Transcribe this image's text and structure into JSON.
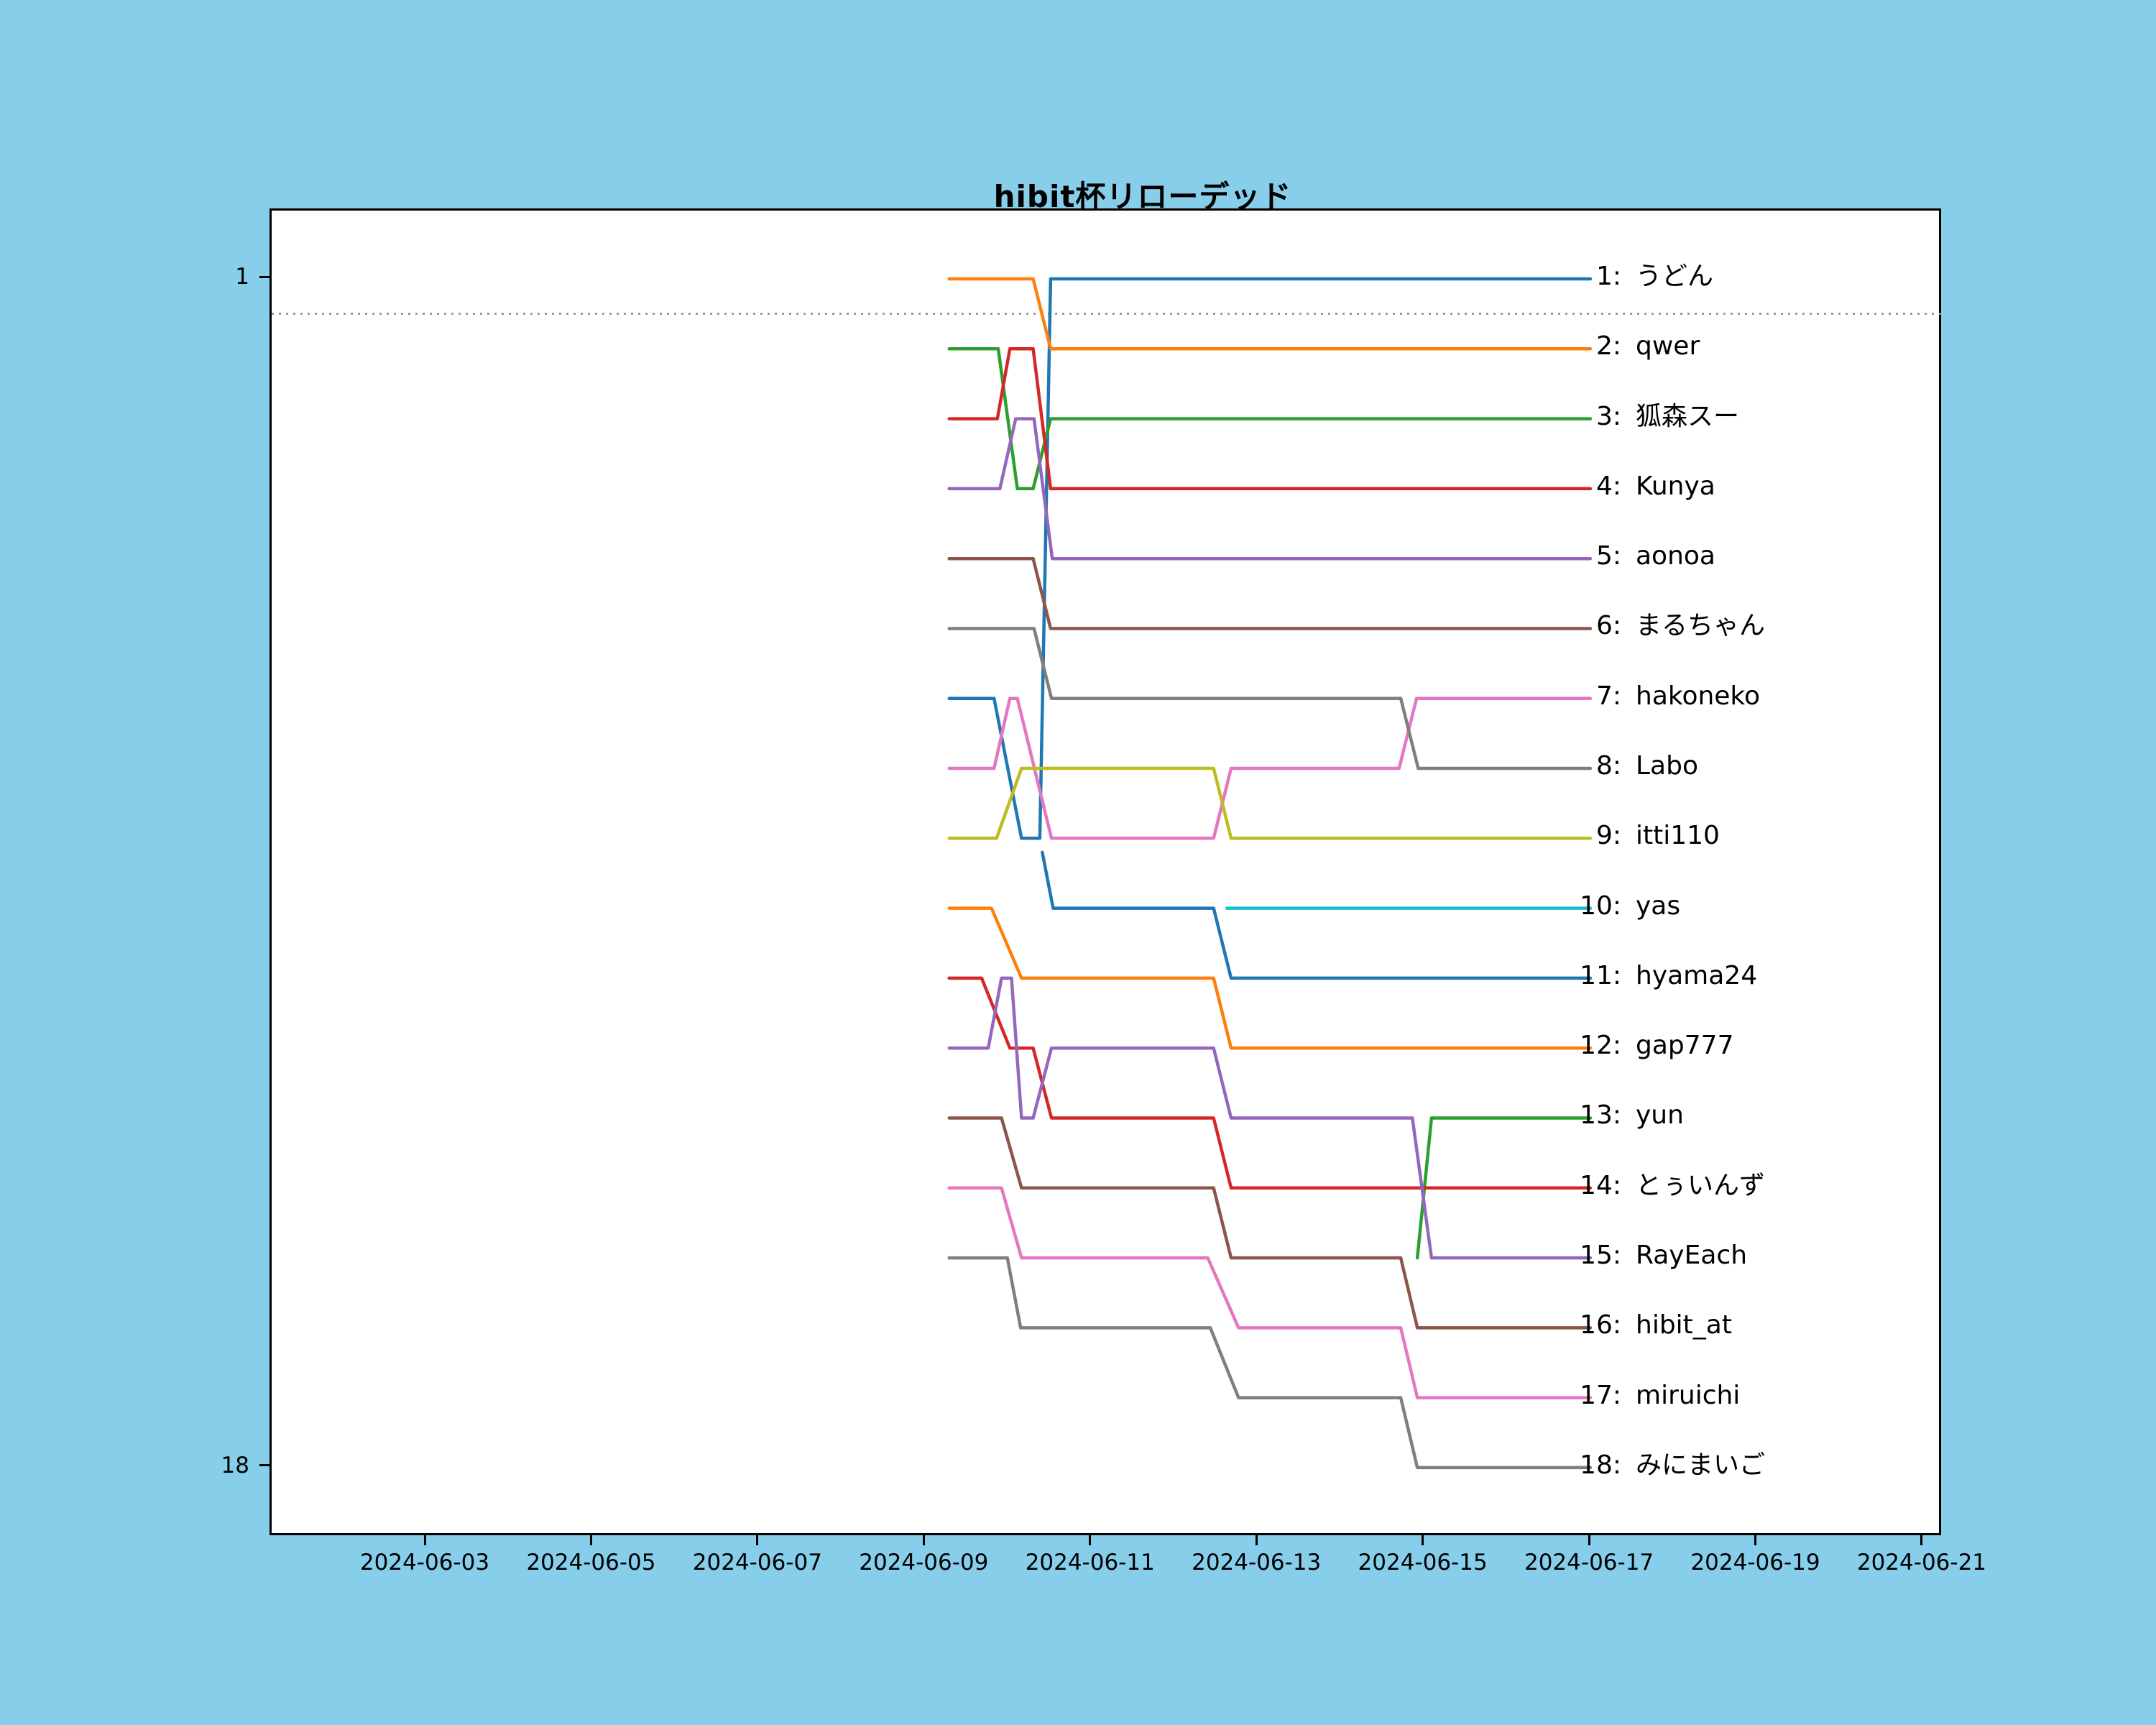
{
  "title": "hibit杯リローデッド",
  "colors": {
    "figure_background": "#87CEEB",
    "plot_background": "#ffffff",
    "axis": "#000000",
    "cutoff_line": "#8a8a8a"
  },
  "chart_data": {
    "type": "line",
    "subtype": "bump-ranking",
    "title": "hibit杯リローデッド",
    "legend_position": "right-of-lines",
    "grid": false,
    "x_axis": {
      "start_date": "2024-06-03",
      "tick_labels": [
        "2024-06-03",
        "2024-06-05",
        "2024-06-07",
        "2024-06-09",
        "2024-06-11",
        "2024-06-13",
        "2024-06-15",
        "2024-06-17",
        "2024-06-19",
        "2024-06-21"
      ],
      "tick_day_offsets": [
        0,
        2,
        4,
        6,
        8,
        10,
        12,
        14,
        16,
        18
      ]
    },
    "y_axis": {
      "tick_labels": [
        "1",
        "18"
      ],
      "tick_ranks": [
        1,
        18
      ],
      "range": [
        1,
        18
      ],
      "inverted": true
    },
    "cutoff_rank": 1.5,
    "series": [
      {
        "final_rank": 1,
        "label_num": "1:",
        "name": "うどん",
        "color": "#1f77b4",
        "points": [
          [
            6.28,
            7
          ],
          [
            6.82,
            7
          ],
          [
            7.15,
            9
          ],
          [
            7.37,
            9
          ],
          [
            7.5,
            1
          ],
          [
            13.99,
            1
          ]
        ]
      },
      {
        "final_rank": 2,
        "label_num": "2:",
        "name": "qwer",
        "color": "#ff7f0e",
        "points": [
          [
            6.28,
            1
          ],
          [
            7.29,
            1
          ],
          [
            7.5,
            2
          ],
          [
            13.99,
            2
          ]
        ]
      },
      {
        "final_rank": 3,
        "label_num": "3:",
        "name": "狐森スー",
        "color": "#2ca02c",
        "points": [
          [
            6.28,
            2
          ],
          [
            6.87,
            2
          ],
          [
            7.1,
            4
          ],
          [
            7.29,
            4
          ],
          [
            7.5,
            3
          ],
          [
            13.99,
            3
          ]
        ]
      },
      {
        "final_rank": 4,
        "label_num": "4:",
        "name": "Kunya",
        "color": "#d62728",
        "points": [
          [
            6.28,
            3
          ],
          [
            6.86,
            3
          ],
          [
            7.01,
            2
          ],
          [
            7.29,
            2
          ],
          [
            7.5,
            4
          ],
          [
            13.99,
            4
          ]
        ]
      },
      {
        "final_rank": 5,
        "label_num": "5:",
        "name": "aonoa",
        "color": "#9467bd",
        "points": [
          [
            6.28,
            4
          ],
          [
            6.89,
            4
          ],
          [
            7.08,
            3
          ],
          [
            7.3,
            3
          ],
          [
            7.52,
            5
          ],
          [
            13.99,
            5
          ]
        ]
      },
      {
        "final_rank": 6,
        "label_num": "6:",
        "name": "まるちゃん",
        "color": "#8c564b",
        "points": [
          [
            6.28,
            5
          ],
          [
            7.29,
            5
          ],
          [
            7.5,
            6
          ],
          [
            13.99,
            6
          ]
        ]
      },
      {
        "final_rank": 7,
        "label_num": "7:",
        "name": "hakoneko",
        "color": "#e377c2",
        "points": [
          [
            6.28,
            8
          ],
          [
            6.82,
            8
          ],
          [
            7.01,
            7
          ],
          [
            7.1,
            7
          ],
          [
            7.51,
            9
          ],
          [
            9.46,
            9
          ],
          [
            9.67,
            8
          ],
          [
            11.69,
            8
          ],
          [
            11.9,
            7
          ],
          [
            13.99,
            7
          ]
        ]
      },
      {
        "final_rank": 8,
        "label_num": "8:",
        "name": "Labo",
        "color": "#7f7f7f",
        "points": [
          [
            6.28,
            6
          ],
          [
            7.3,
            6
          ],
          [
            7.51,
            7
          ],
          [
            11.71,
            7
          ],
          [
            11.92,
            8
          ],
          [
            13.99,
            8
          ]
        ]
      },
      {
        "final_rank": 9,
        "label_num": "9:",
        "name": "itti110",
        "color": "#bcbd22",
        "points": [
          [
            6.28,
            9
          ],
          [
            6.85,
            9
          ],
          [
            7.15,
            8
          ],
          [
            9.46,
            8
          ],
          [
            9.67,
            9
          ],
          [
            13.99,
            9
          ]
        ]
      },
      {
        "final_rank": 10,
        "label_num": "10:",
        "name": "yas",
        "color": "#17becf",
        "points": [
          [
            9.62,
            10
          ],
          [
            13.99,
            10
          ]
        ]
      },
      {
        "final_rank": 11,
        "label_num": "11:",
        "name": "hyama24",
        "color": "#1f77b4",
        "points": [
          [
            7.4,
            9.2
          ],
          [
            7.53,
            10
          ],
          [
            9.46,
            10
          ],
          [
            9.67,
            11
          ],
          [
            13.99,
            11
          ]
        ]
      },
      {
        "final_rank": 12,
        "label_num": "12:",
        "name": "gap777",
        "color": "#ff7f0e",
        "points": [
          [
            6.28,
            10
          ],
          [
            6.79,
            10
          ],
          [
            7.15,
            11
          ],
          [
            9.46,
            11
          ],
          [
            9.67,
            12
          ],
          [
            13.99,
            12
          ]
        ]
      },
      {
        "final_rank": 13,
        "label_num": "13:",
        "name": "yun",
        "color": "#2ca02c",
        "points": [
          [
            11.91,
            15
          ],
          [
            12.08,
            13
          ],
          [
            13.99,
            13
          ]
        ]
      },
      {
        "final_rank": 14,
        "label_num": "14:",
        "name": "とぅいんず",
        "color": "#d62728",
        "points": [
          [
            6.28,
            11
          ],
          [
            6.67,
            11
          ],
          [
            7.01,
            12
          ],
          [
            7.29,
            12
          ],
          [
            7.51,
            13
          ],
          [
            9.46,
            13
          ],
          [
            9.67,
            14
          ],
          [
            13.99,
            14
          ]
        ]
      },
      {
        "final_rank": 15,
        "label_num": "15:",
        "name": "RayEach",
        "color": "#9467bd",
        "points": [
          [
            6.28,
            12
          ],
          [
            6.75,
            12
          ],
          [
            6.91,
            11
          ],
          [
            7.03,
            11
          ],
          [
            7.15,
            13
          ],
          [
            7.29,
            13
          ],
          [
            7.51,
            12
          ],
          [
            9.46,
            12
          ],
          [
            9.67,
            13
          ],
          [
            11.85,
            13
          ],
          [
            12.08,
            15
          ],
          [
            13.99,
            15
          ]
        ]
      },
      {
        "final_rank": 16,
        "label_num": "16:",
        "name": "hibit_at",
        "color": "#8c564b",
        "points": [
          [
            6.28,
            13
          ],
          [
            6.91,
            13
          ],
          [
            7.15,
            14
          ],
          [
            9.46,
            14
          ],
          [
            9.67,
            15
          ],
          [
            11.71,
            15
          ],
          [
            11.91,
            16
          ],
          [
            13.99,
            16
          ]
        ]
      },
      {
        "final_rank": 17,
        "label_num": "17:",
        "name": "miruichi",
        "color": "#e377c2",
        "points": [
          [
            6.28,
            14
          ],
          [
            6.91,
            14
          ],
          [
            7.15,
            15
          ],
          [
            9.39,
            15
          ],
          [
            9.76,
            16
          ],
          [
            11.71,
            16
          ],
          [
            11.91,
            17
          ],
          [
            13.99,
            17
          ]
        ]
      },
      {
        "final_rank": 18,
        "label_num": "18:",
        "name": "みにまいご",
        "color": "#7f7f7f",
        "points": [
          [
            6.28,
            15
          ],
          [
            6.98,
            15
          ],
          [
            7.14,
            16
          ],
          [
            9.42,
            16
          ],
          [
            9.76,
            17
          ],
          [
            11.71,
            17
          ],
          [
            11.91,
            18
          ],
          [
            13.99,
            18
          ]
        ]
      }
    ]
  }
}
